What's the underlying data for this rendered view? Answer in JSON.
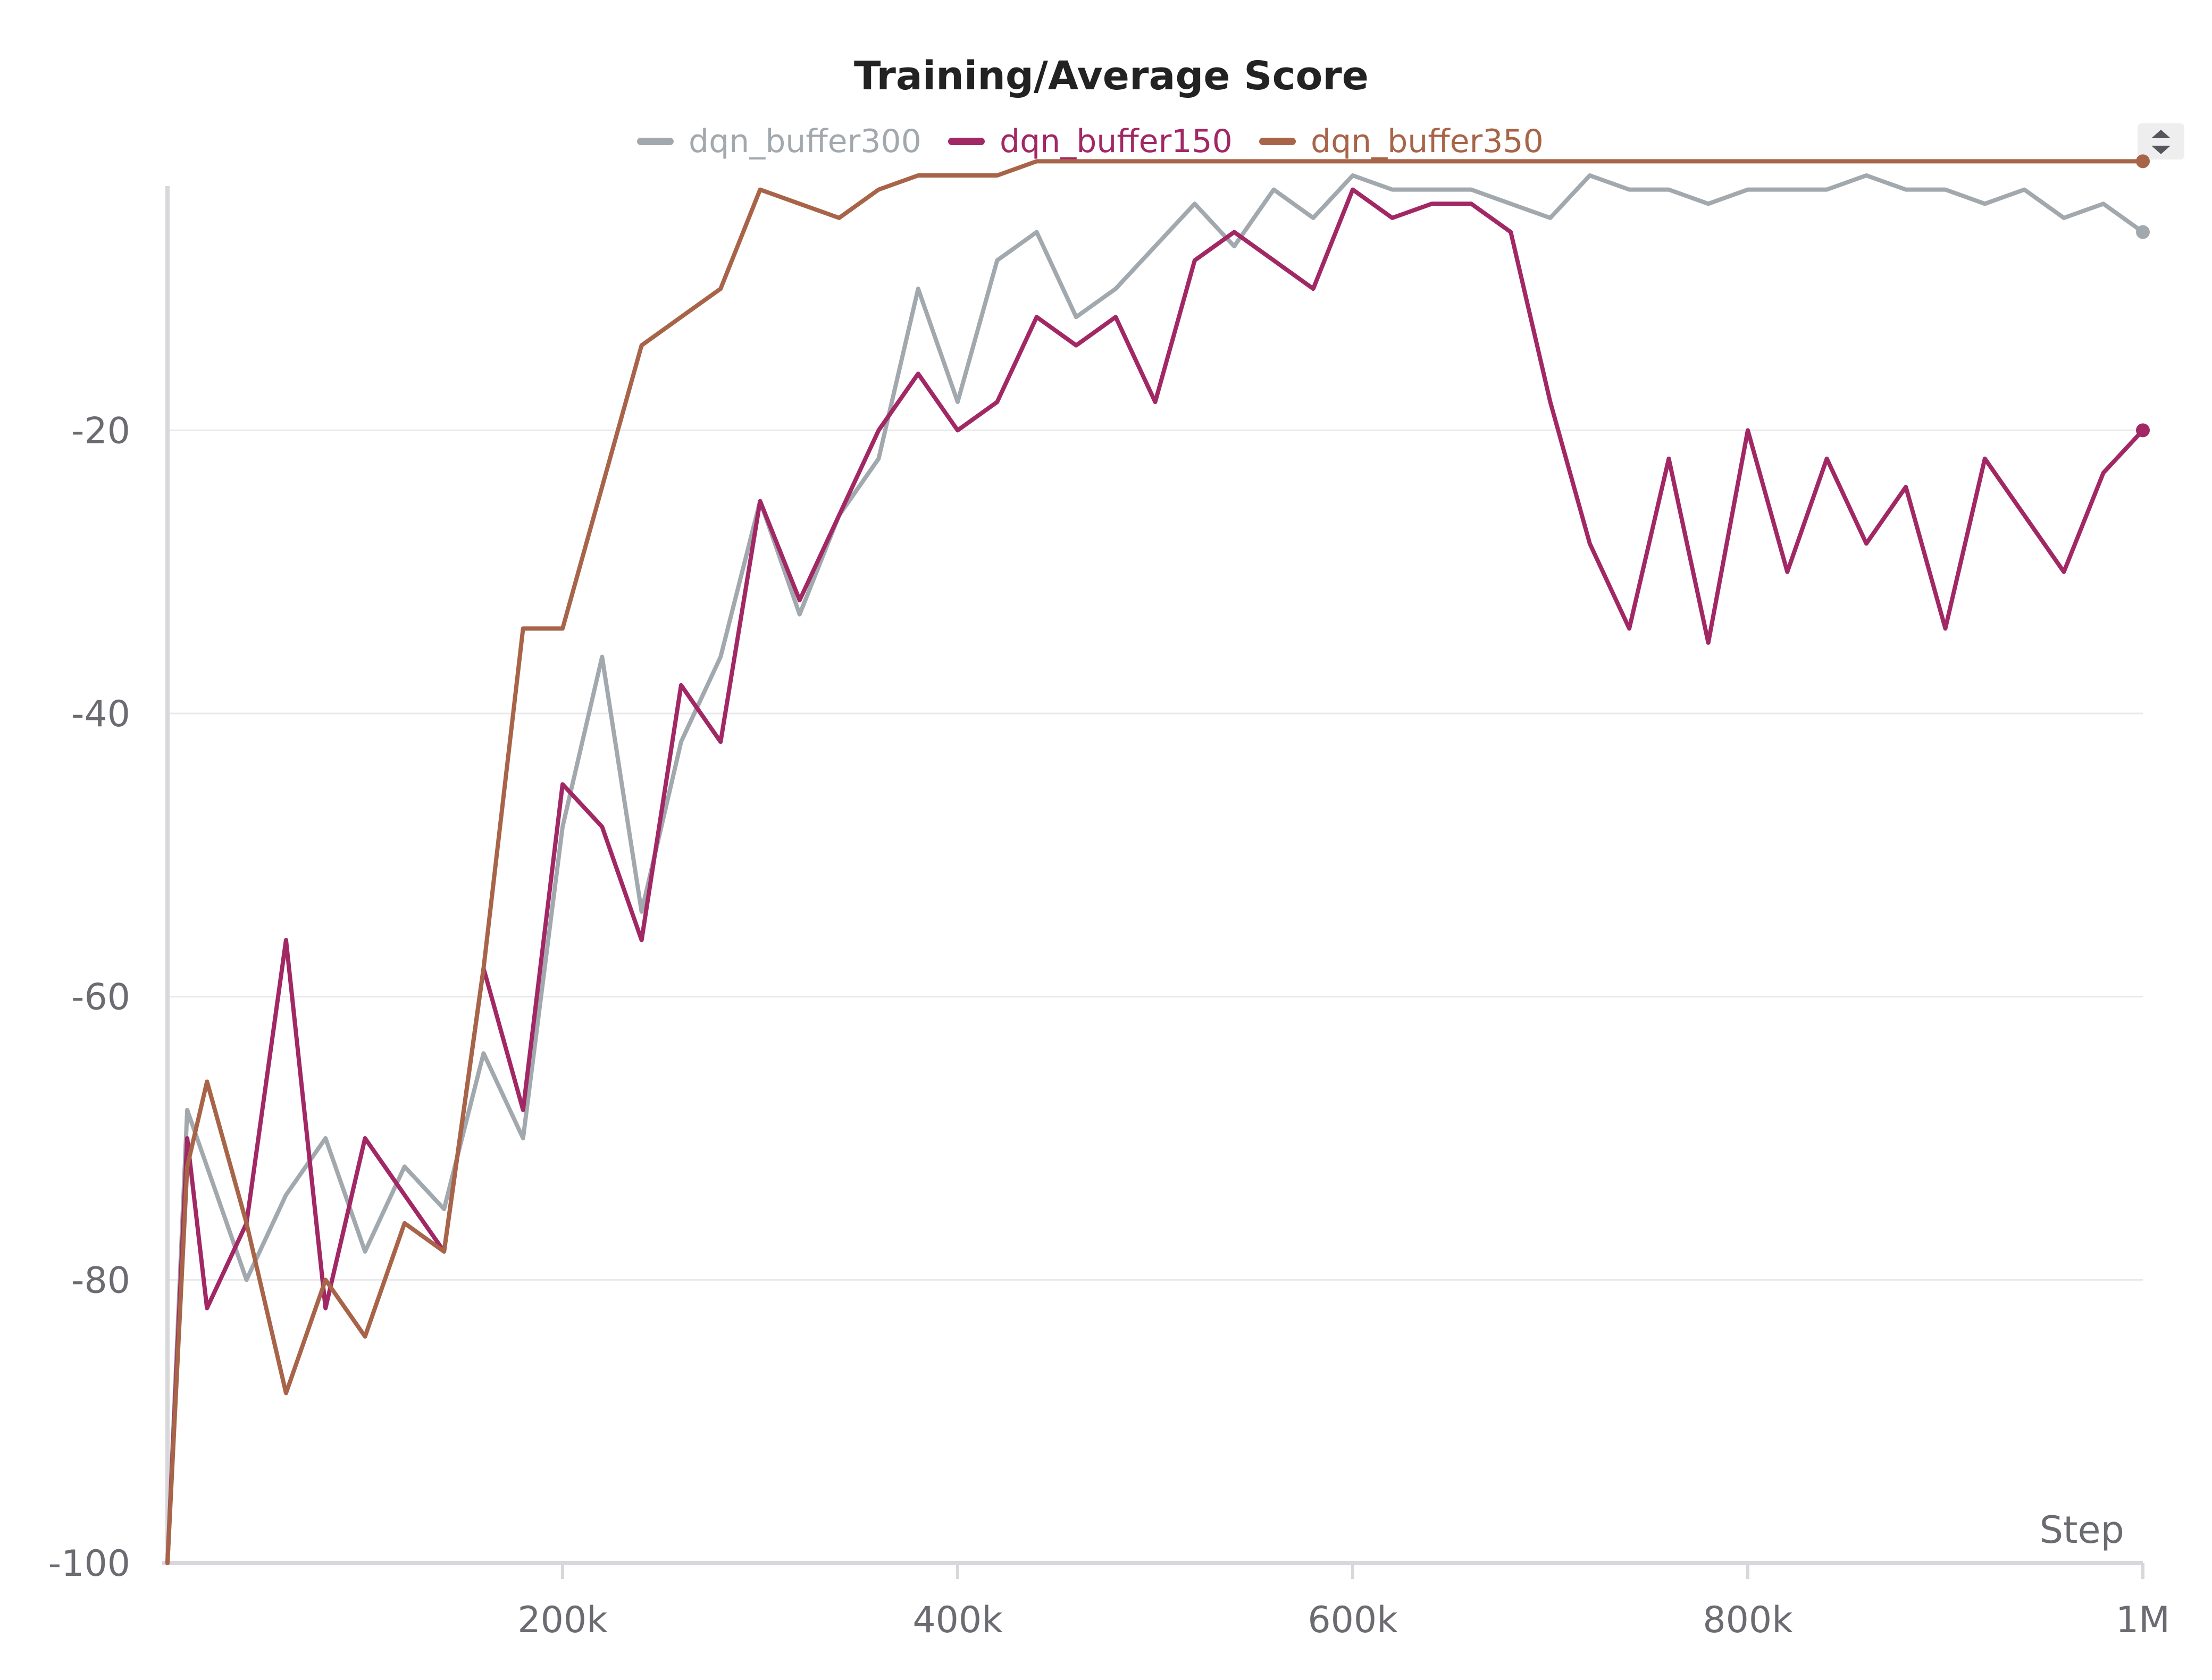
{
  "chart_data": {
    "type": "line",
    "title": "Training/Average Score",
    "xlabel": "Step",
    "ylabel": "",
    "xlim": [
      0,
      1000000
    ],
    "ylim": [
      -100,
      -2
    ],
    "x_ticks": [
      200000,
      400000,
      600000,
      800000,
      1000000
    ],
    "x_tick_labels": [
      "200k",
      "400k",
      "600k",
      "800k",
      "1M"
    ],
    "y_ticks": [
      -100,
      -80,
      -60,
      -40,
      -20
    ],
    "y_tick_labels": [
      "-100",
      "-80",
      "-60",
      "-40",
      "-20"
    ],
    "grid": true,
    "legend_position": "top-center",
    "series": [
      {
        "name": "dqn_buffer300",
        "color": "#a2a9ae",
        "x": [
          0,
          10000,
          20000,
          40000,
          60000,
          80000,
          100000,
          120000,
          140000,
          160000,
          180000,
          200000,
          220000,
          240000,
          260000,
          280000,
          300000,
          320000,
          340000,
          360000,
          380000,
          400000,
          420000,
          440000,
          460000,
          480000,
          500000,
          520000,
          540000,
          560000,
          580000,
          600000,
          620000,
          640000,
          660000,
          680000,
          700000,
          720000,
          740000,
          760000,
          780000,
          800000,
          820000,
          840000,
          860000,
          880000,
          900000,
          920000,
          940000,
          960000,
          980000,
          1000000
        ],
        "y": [
          -100,
          -68,
          -72,
          -80,
          -74,
          -70,
          -78,
          -72,
          -75,
          -64,
          -70,
          -48,
          -36,
          -54,
          -42,
          -36,
          -25,
          -33,
          -26,
          -22,
          -10,
          -18,
          -8,
          -6,
          -12,
          -10,
          -7,
          -4,
          -7,
          -3,
          -5,
          -2,
          -3,
          -3,
          -3,
          -4,
          -5,
          -2,
          -3,
          -3,
          -4,
          -3,
          -3,
          -3,
          -2,
          -3,
          -3,
          -4,
          -3,
          -5,
          -4,
          -6
        ]
      },
      {
        "name": "dqn_buffer150",
        "color": "#a12864",
        "x": [
          0,
          10000,
          20000,
          40000,
          60000,
          80000,
          100000,
          120000,
          140000,
          160000,
          180000,
          200000,
          220000,
          240000,
          260000,
          280000,
          300000,
          320000,
          340000,
          360000,
          380000,
          400000,
          420000,
          440000,
          460000,
          480000,
          500000,
          520000,
          540000,
          560000,
          580000,
          600000,
          620000,
          640000,
          660000,
          680000,
          700000,
          720000,
          740000,
          760000,
          780000,
          800000,
          820000,
          840000,
          860000,
          880000,
          900000,
          920000,
          940000,
          960000,
          980000,
          1000000
        ],
        "y": [
          -100,
          -70,
          -82,
          -76,
          -56,
          -82,
          -70,
          -74,
          -78,
          -58,
          -68,
          -45,
          -48,
          -56,
          -38,
          -42,
          -25,
          -32,
          -26,
          -20,
          -16,
          -20,
          -18,
          -12,
          -14,
          -12,
          -18,
          -8,
          -6,
          -8,
          -10,
          -3,
          -5,
          -4,
          -4,
          -6,
          -18,
          -28,
          -34,
          -22,
          -35,
          -20,
          -30,
          -22,
          -28,
          -24,
          -34,
          -22,
          -26,
          -30,
          -23,
          -20
        ]
      },
      {
        "name": "dqn_buffer350",
        "color": "#a86448",
        "x": [
          0,
          10000,
          20000,
          40000,
          60000,
          80000,
          100000,
          120000,
          140000,
          160000,
          180000,
          200000,
          220000,
          240000,
          260000,
          280000,
          300000,
          320000,
          340000,
          360000,
          380000,
          400000,
          420000,
          440000,
          460000,
          480000,
          500000,
          520000,
          540000,
          560000,
          580000,
          600000,
          620000,
          640000,
          660000,
          680000,
          700000,
          720000,
          740000,
          760000,
          780000,
          800000,
          820000,
          840000,
          860000,
          880000,
          900000,
          920000,
          940000,
          960000,
          980000,
          1000000
        ],
        "y": [
          -100,
          -72,
          -66,
          -76,
          -88,
          -80,
          -84,
          -76,
          -78,
          -58,
          -34,
          -34,
          -24,
          -14,
          -12,
          -10,
          -3,
          -4,
          -5,
          -3,
          -2,
          -2,
          -2,
          -1,
          -1,
          -1,
          -1,
          -1,
          -1,
          -1,
          -1,
          -1,
          -1,
          -1,
          -1,
          -1,
          -1,
          -1,
          -1,
          -1,
          -1,
          -1,
          -1,
          -1,
          -1,
          -1,
          -1,
          -1,
          -1,
          -1,
          -1,
          -1
        ]
      }
    ]
  }
}
